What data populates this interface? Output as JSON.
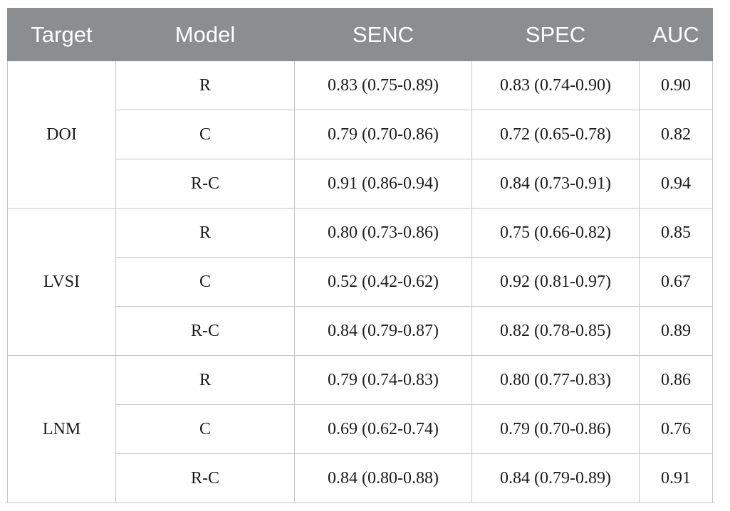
{
  "table": {
    "headers": [
      "Target",
      "Model",
      "SENC",
      "SPEC",
      "AUC"
    ],
    "groups": [
      {
        "target": "DOI",
        "rows": [
          {
            "model": "R",
            "senc": "0.83 (0.75-0.89)",
            "spec": "0.83 (0.74-0.90)",
            "auc": "0.90"
          },
          {
            "model": "C",
            "senc": "0.79 (0.70-0.86)",
            "spec": "0.72 (0.65-0.78)",
            "auc": "0.82"
          },
          {
            "model": "R-C",
            "senc": "0.91 (0.86-0.94)",
            "spec": "0.84 (0.73-0.91)",
            "auc": "0.94"
          }
        ]
      },
      {
        "target": "LVSI",
        "rows": [
          {
            "model": "R",
            "senc": "0.80 (0.73-0.86)",
            "spec": "0.75 (0.66-0.82)",
            "auc": "0.85"
          },
          {
            "model": "C",
            "senc": "0.52 (0.42-0.62)",
            "spec": "0.92 (0.81-0.97)",
            "auc": "0.67"
          },
          {
            "model": "R-C",
            "senc": "0.84 (0.79-0.87)",
            "spec": "0.82 (0.78-0.85)",
            "auc": "0.89"
          }
        ]
      },
      {
        "target": "LNM",
        "rows": [
          {
            "model": "R",
            "senc": "0.79 (0.74-0.83)",
            "spec": "0.80 (0.77-0.83)",
            "auc": "0.86"
          },
          {
            "model": "C",
            "senc": "0.69 (0.62-0.74)",
            "spec": "0.79 (0.70-0.86)",
            "auc": "0.76"
          },
          {
            "model": "R-C",
            "senc": "0.84 (0.80-0.88)",
            "spec": "0.84 (0.79-0.89)",
            "auc": "0.91"
          }
        ]
      }
    ]
  },
  "colors": {
    "header_background": "#8b8d8f",
    "header_text": "#ffffff",
    "grid_line": "#c7c7c7",
    "body_text": "#1c1c1c"
  }
}
